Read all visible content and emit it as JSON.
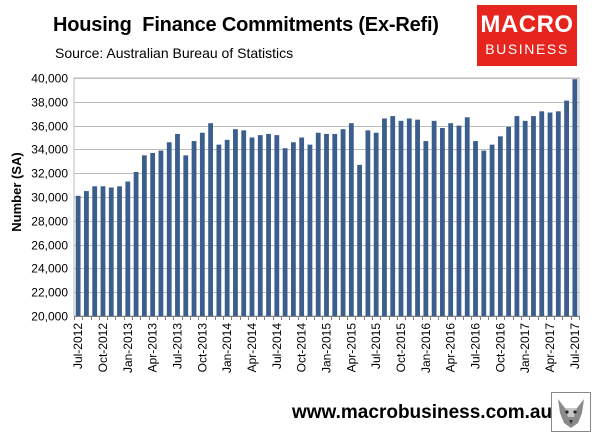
{
  "header": {
    "title": "Housing  Finance Commitments (Ex-Refi)",
    "subtitle": "Source: Australian Bureau of Statistics"
  },
  "logo": {
    "line1": "MACRO",
    "line2": "BUSINESS",
    "bg_color": "#e6251f"
  },
  "footer": {
    "website": "www.macrobusiness.com.au",
    "wolf_icon": "wolf-head-icon"
  },
  "chart_data": {
    "type": "bar",
    "title": "Housing  Finance Commitments (Ex-Refi)",
    "ylabel": "Number (SA)",
    "xlabel": "",
    "ylim": [
      20000,
      40000
    ],
    "y_ticks": [
      20000,
      22000,
      24000,
      26000,
      28000,
      30000,
      32000,
      34000,
      36000,
      38000,
      40000
    ],
    "y_tick_labels": [
      "20,000",
      "22,000",
      "24,000",
      "26,000",
      "28,000",
      "30,000",
      "32,000",
      "34,000",
      "36,000",
      "38,000",
      "40,000"
    ],
    "bar_color": "#3b5e8c",
    "grid": true,
    "categories": [
      "Jul-2012",
      "Aug-2012",
      "Sep-2012",
      "Oct-2012",
      "Nov-2012",
      "Dec-2012",
      "Jan-2013",
      "Feb-2013",
      "Mar-2013",
      "Apr-2013",
      "May-2013",
      "Jun-2013",
      "Jul-2013",
      "Aug-2013",
      "Sep-2013",
      "Oct-2013",
      "Nov-2013",
      "Dec-2013",
      "Jan-2014",
      "Feb-2014",
      "Mar-2014",
      "Apr-2014",
      "May-2014",
      "Jun-2014",
      "Jul-2014",
      "Aug-2014",
      "Sep-2014",
      "Oct-2014",
      "Nov-2014",
      "Dec-2014",
      "Jan-2015",
      "Feb-2015",
      "Mar-2015",
      "Apr-2015",
      "May-2015",
      "Jun-2015",
      "Jul-2015",
      "Aug-2015",
      "Sep-2015",
      "Oct-2015",
      "Nov-2015",
      "Dec-2015",
      "Jan-2016",
      "Feb-2016",
      "Mar-2016",
      "Apr-2016",
      "May-2016",
      "Jun-2016",
      "Jul-2016",
      "Aug-2016",
      "Sep-2016",
      "Oct-2016",
      "Nov-2016",
      "Dec-2016",
      "Jan-2017",
      "Feb-2017",
      "Mar-2017",
      "Apr-2017",
      "May-2017",
      "Jun-2017",
      "Jul-2017"
    ],
    "values": [
      30100,
      30500,
      30900,
      30900,
      30800,
      30900,
      31300,
      32100,
      33500,
      33700,
      33900,
      34600,
      35300,
      33500,
      34700,
      35400,
      36200,
      34400,
      34800,
      35700,
      35600,
      35000,
      35200,
      35300,
      35200,
      34100,
      34600,
      35000,
      34400,
      35400,
      35300,
      35300,
      35700,
      36200,
      32700,
      35600,
      35400,
      36600,
      36800,
      36400,
      36600,
      36500,
      34700,
      36400,
      35800,
      36200,
      36000,
      36700,
      34700,
      33900,
      34400,
      35100,
      35900,
      36800,
      36400,
      36800,
      37200,
      37100,
      37200,
      38100,
      39900
    ],
    "x_tick_labels": [
      "Jul-2012",
      "Oct-2012",
      "Jan-2013",
      "Apr-2013",
      "Jul-2013",
      "Oct-2013",
      "Jan-2014",
      "Apr-2014",
      "Jul-2014",
      "Oct-2014",
      "Jan-2015",
      "Apr-2015",
      "Jul-2015",
      "Oct-2015",
      "Jan-2016",
      "Apr-2016",
      "Jul-2016",
      "Oct-2016",
      "Jan-2017",
      "Apr-2017",
      "Jul-2017"
    ]
  }
}
